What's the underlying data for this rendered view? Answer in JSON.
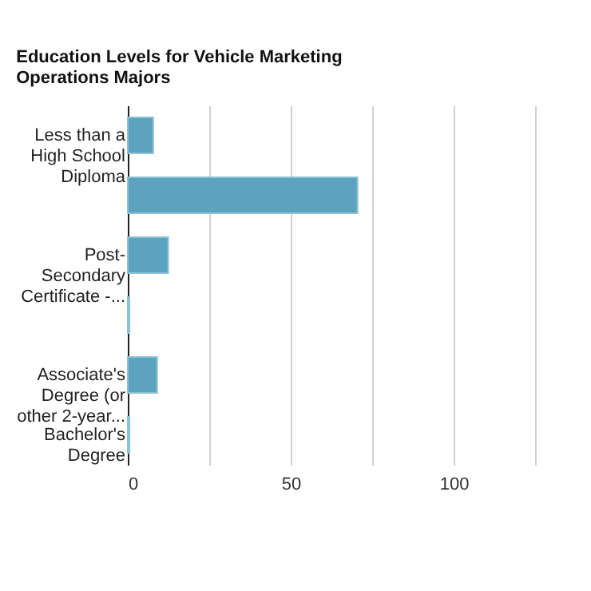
{
  "chart_data": {
    "type": "bar",
    "orientation": "horizontal",
    "title": "Education Levels for Vehicle Marketing Operations Majors",
    "categories": [
      "Less than a High School Diploma",
      null,
      "Post-Secondary Certificate -...",
      null,
      "Associate's Degree (or other 2-year...",
      "Bachelor's Degree"
    ],
    "values": [
      7.8,
      70.5,
      12.4,
      0.5,
      9.0,
      0.5
    ],
    "color": "#5ba3bf",
    "xlim": [
      0,
      125
    ],
    "xticks": [
      0,
      {
        "value": 25,
        "label": null
      },
      50,
      {
        "value": 75,
        "label": null
      },
      100,
      {
        "value": 125,
        "label": null
      }
    ],
    "grid": "x"
  }
}
